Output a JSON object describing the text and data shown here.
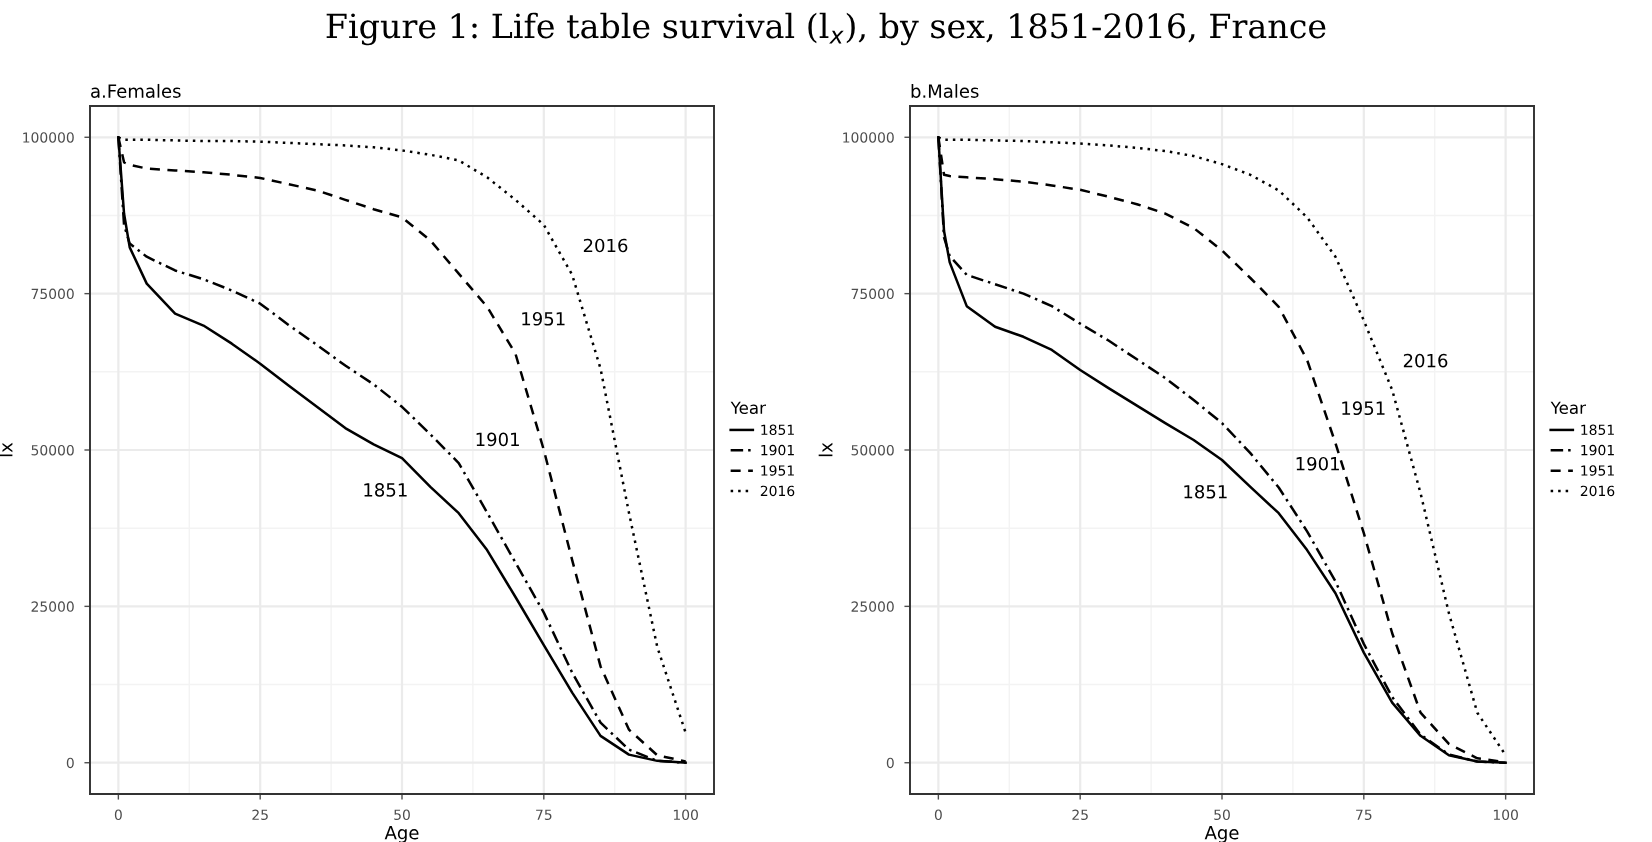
{
  "chart_data": [
    {
      "type": "line",
      "title": "Figure 1: Life table survival (l$_{x}$), by sex, 1851-2016, France",
      "subtitle": "a.Females",
      "xlabel": "Age",
      "ylabel": "lx",
      "legend_title": "Year",
      "legend": "right",
      "grid": true,
      "xlim": [
        -5,
        105
      ],
      "ylim": [
        -5000,
        105000
      ],
      "xticks": [
        0,
        25,
        50,
        75,
        100
      ],
      "yticks": [
        0,
        25000,
        50000,
        75000,
        100000
      ],
      "x": [
        0,
        1,
        2,
        5,
        10,
        15,
        20,
        25,
        30,
        35,
        40,
        45,
        50,
        55,
        60,
        65,
        70,
        75,
        80,
        85,
        90,
        95,
        100
      ],
      "series": [
        {
          "name": "1851",
          "color": "#000000",
          "line_style": "solid",
          "values": [
            100000,
            87800,
            82400,
            76600,
            71800,
            69900,
            67000,
            63800,
            60300,
            56900,
            53500,
            50900,
            48700,
            44100,
            39900,
            34000,
            26500,
            18800,
            11200,
            4300,
            1300,
            300,
            0
          ]
        },
        {
          "name": "1901",
          "color": "#000000",
          "line_style": "dashdot",
          "values": [
            100000,
            86000,
            83000,
            80900,
            78700,
            77300,
            75500,
            73400,
            70000,
            66800,
            63500,
            60500,
            56900,
            52500,
            47900,
            40000,
            32000,
            24000,
            14400,
            6400,
            2100,
            300,
            0
          ]
        },
        {
          "name": "1951",
          "color": "#000000",
          "line_style": "dashed",
          "values": [
            100000,
            96000,
            95600,
            95000,
            94700,
            94400,
            94000,
            93500,
            92500,
            91500,
            90000,
            88500,
            87200,
            83500,
            78200,
            72900,
            65400,
            50000,
            32400,
            15400,
            5300,
            1200,
            200
          ]
        },
        {
          "name": "2016",
          "color": "#000000",
          "line_style": "dotted",
          "values": [
            100000,
            99600,
            99600,
            99600,
            99500,
            99400,
            99400,
            99300,
            99100,
            98900,
            98700,
            98400,
            97900,
            97200,
            96300,
            93600,
            90000,
            86000,
            78000,
            63000,
            40000,
            18500,
            4800
          ]
        }
      ]
    },
    {
      "type": "line",
      "subtitle": "b.Males",
      "xlabel": "Age",
      "ylabel": "lx",
      "legend_title": "Year",
      "legend": "right",
      "grid": true,
      "xlim": [
        -5,
        105
      ],
      "ylim": [
        -5000,
        105000
      ],
      "xticks": [
        0,
        25,
        50,
        75,
        100
      ],
      "yticks": [
        0,
        25000,
        50000,
        75000,
        100000
      ],
      "x": [
        0,
        1,
        2,
        5,
        10,
        15,
        20,
        25,
        30,
        35,
        40,
        45,
        50,
        55,
        60,
        65,
        70,
        75,
        80,
        85,
        90,
        95,
        100
      ],
      "series": [
        {
          "name": "1851",
          "color": "#000000",
          "line_style": "solid",
          "values": [
            100000,
            85000,
            80000,
            73000,
            69700,
            68100,
            66000,
            62800,
            59900,
            57100,
            54300,
            51600,
            48400,
            44100,
            39900,
            34000,
            27100,
            17600,
            9600,
            4300,
            1200,
            200,
            0
          ]
        },
        {
          "name": "1901",
          "color": "#000000",
          "line_style": "dashdot",
          "values": [
            100000,
            84000,
            81000,
            78000,
            76500,
            75000,
            73000,
            70200,
            67500,
            64500,
            61500,
            58000,
            54300,
            49500,
            44000,
            37000,
            29000,
            19000,
            10500,
            4500,
            1300,
            200,
            0
          ]
        },
        {
          "name": "1951",
          "color": "#000000",
          "line_style": "dashed",
          "values": [
            100000,
            94000,
            93800,
            93600,
            93300,
            92900,
            92300,
            91600,
            90500,
            89300,
            87800,
            85500,
            81900,
            77500,
            72900,
            64400,
            51100,
            36700,
            20700,
            8000,
            3000,
            700,
            100
          ]
        },
        {
          "name": "2016",
          "color": "#000000",
          "line_style": "dotted",
          "values": [
            100000,
            99600,
            99600,
            99600,
            99500,
            99400,
            99200,
            99000,
            98700,
            98300,
            97800,
            97000,
            95700,
            94000,
            91500,
            87200,
            80900,
            70700,
            59600,
            43100,
            23900,
            8000,
            1200
          ]
        }
      ]
    }
  ]
}
